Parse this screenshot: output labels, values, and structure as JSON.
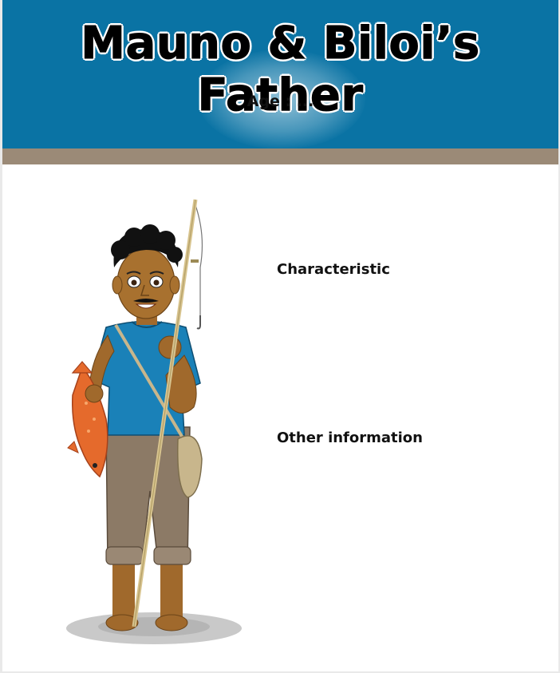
{
  "header": {
    "title": "Mauno & Biloi’s Father",
    "age_label": "Age : ..."
  },
  "sections": {
    "characteristic_label": "Characteristic",
    "other_info_label": "Other information"
  },
  "colors": {
    "header_bg": "#0a73a4",
    "stripe": "#9b8a77",
    "page_bg": "#ffffff"
  },
  "illustration": {
    "subject": "fisherman-holding-fish-and-fishing-rod"
  }
}
